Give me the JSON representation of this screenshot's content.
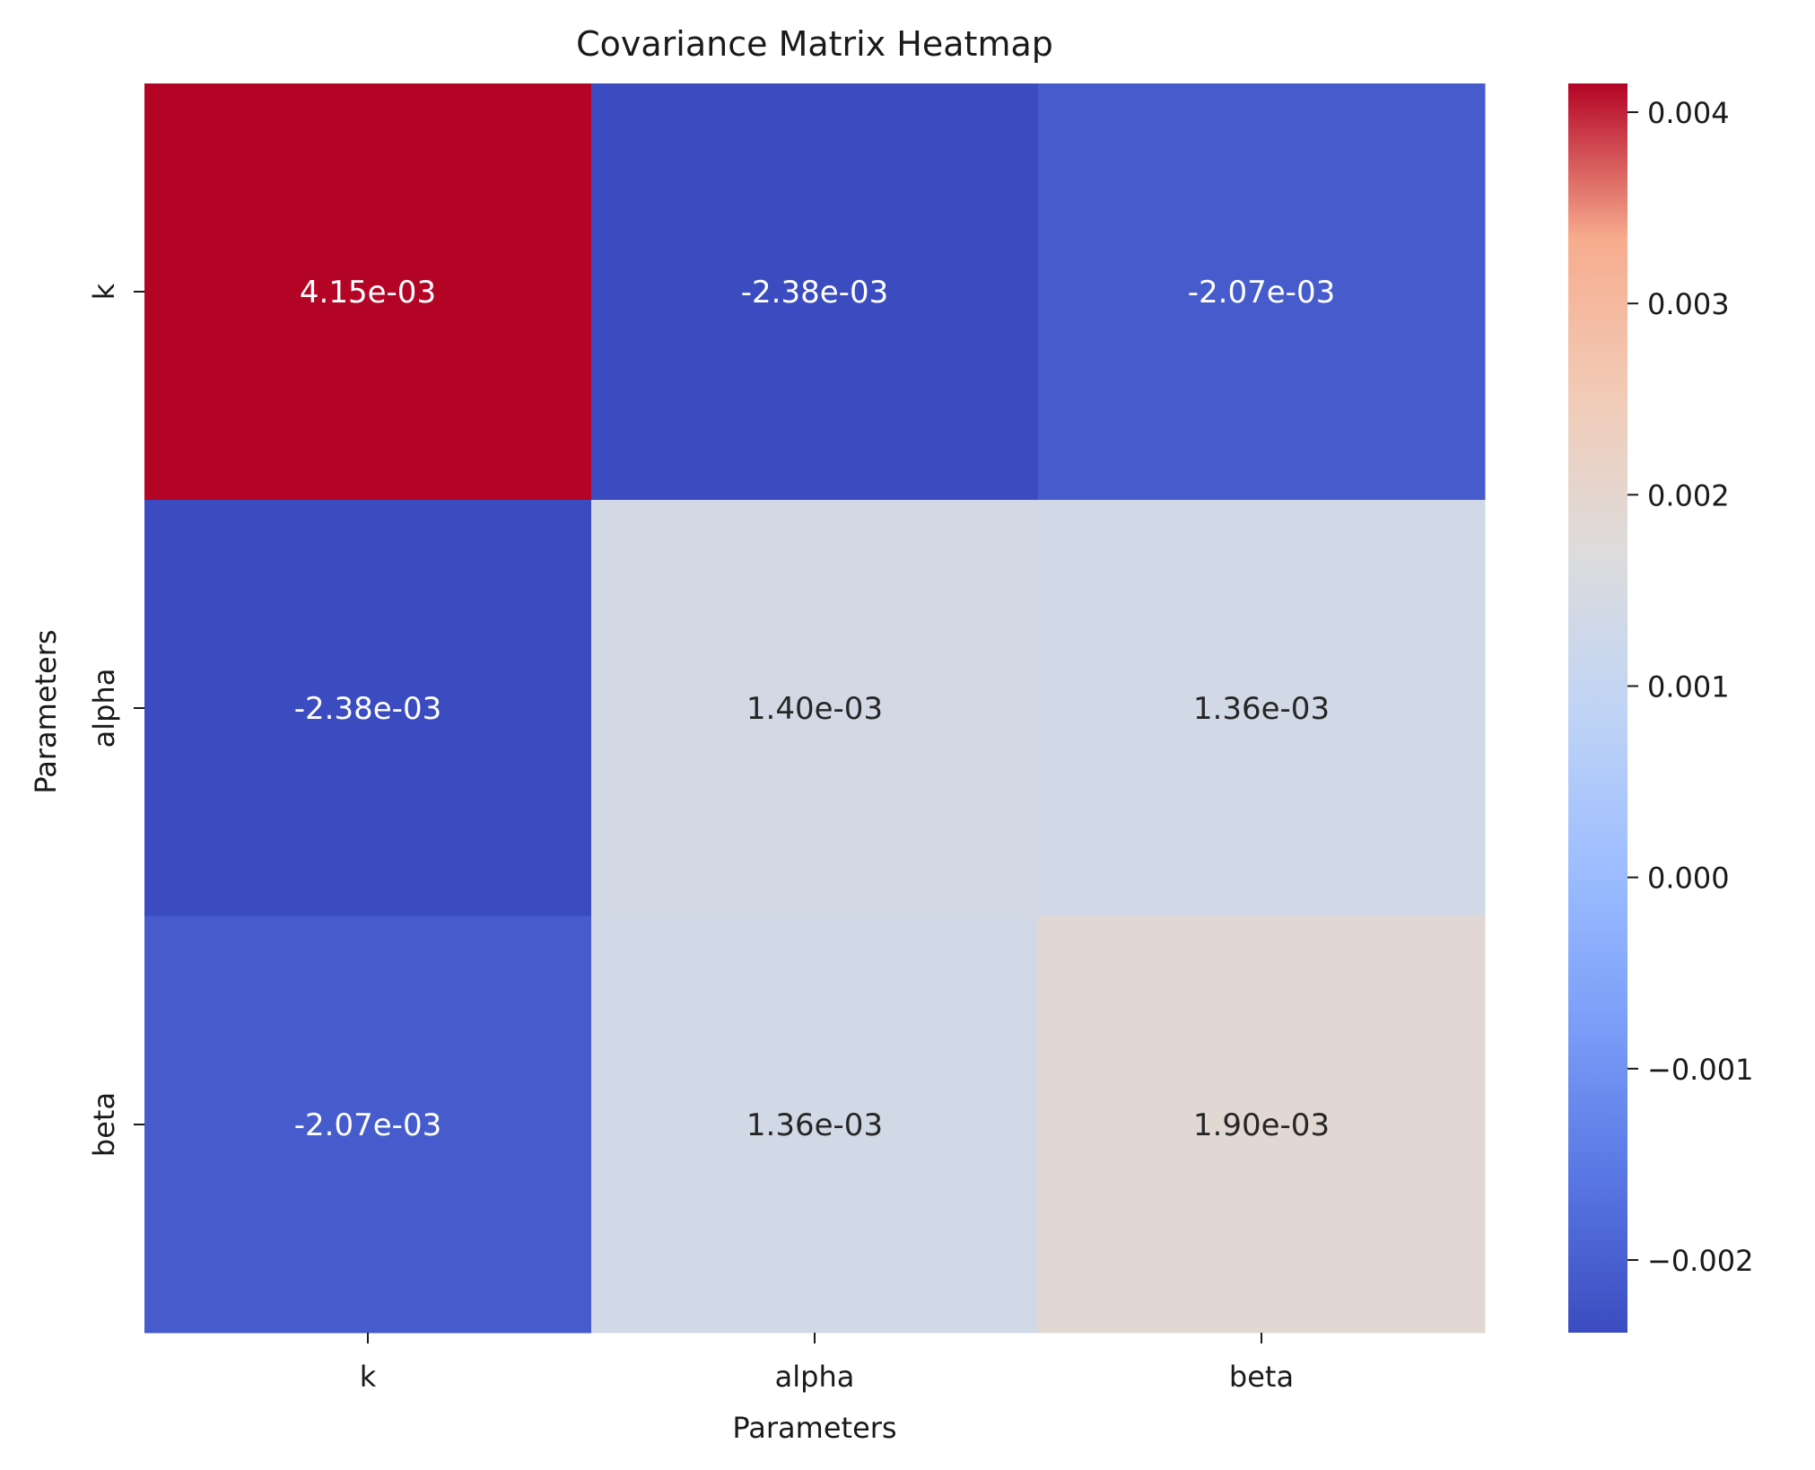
{
  "chart_data": {
    "type": "heatmap",
    "title": "Covariance Matrix Heatmap",
    "xlabel": "Parameters",
    "ylabel": "Parameters",
    "x_categories": [
      "k",
      "alpha",
      "beta"
    ],
    "y_categories": [
      "k",
      "alpha",
      "beta"
    ],
    "values": [
      [
        0.00415,
        -0.00238,
        -0.00207
      ],
      [
        -0.00238,
        0.0014,
        0.00136
      ],
      [
        -0.00207,
        0.00136,
        0.0019
      ]
    ],
    "cell_labels": [
      [
        "4.15e-03",
        "-2.38e-03",
        "-2.07e-03"
      ],
      [
        "-2.38e-03",
        "1.40e-03",
        "1.36e-03"
      ],
      [
        "-2.07e-03",
        "1.36e-03",
        "1.90e-03"
      ]
    ],
    "colormap": "coolwarm",
    "colorbar": {
      "vmin": -0.00238,
      "vmax": 0.00415,
      "ticks": [
        -0.002,
        -0.001,
        0.0,
        0.001,
        0.002,
        0.003,
        0.004
      ],
      "tick_labels": [
        "−0.002",
        "−0.001",
        "0.000",
        "0.001",
        "0.002",
        "0.003",
        "0.004"
      ]
    },
    "grid": false,
    "legend": "colorbar-right"
  }
}
